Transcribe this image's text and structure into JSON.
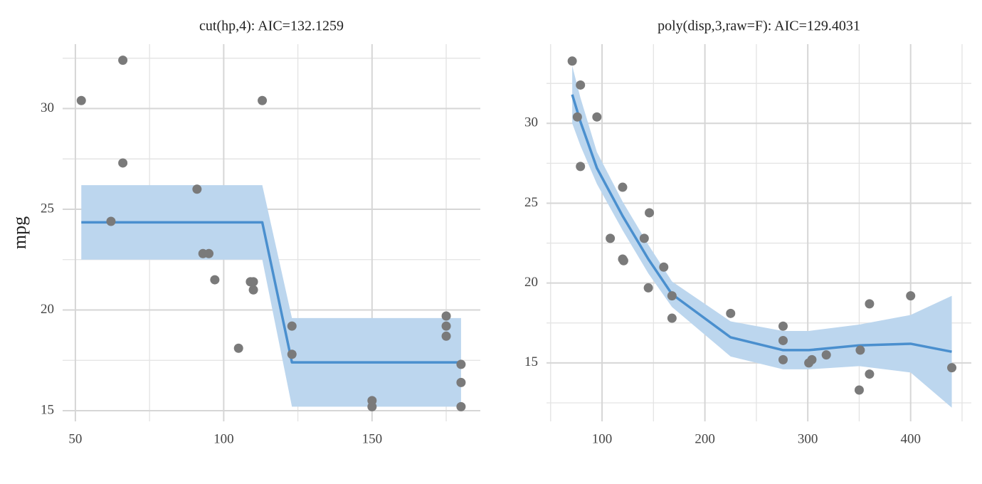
{
  "chart_data": [
    {
      "type": "scatter",
      "title": "cut(hp,4): AIC=132.1259",
      "ylabel": "mpg",
      "point_color": "#7a7a7a",
      "line_color": "#4a8fce",
      "band_color": "#bcd6ee",
      "x": [
        52,
        62,
        66,
        66,
        91,
        93,
        95,
        97,
        105,
        109,
        110,
        110,
        113,
        123,
        123,
        150,
        150,
        175,
        175,
        175,
        180,
        180,
        180
      ],
      "y": [
        30.4,
        24.4,
        32.4,
        27.3,
        26,
        22.8,
        22.8,
        21.5,
        18.1,
        21.4,
        21.4,
        21.0,
        30.4,
        19.2,
        17.8,
        15.5,
        15.2,
        19.7,
        19.2,
        18.7,
        17.3,
        16.4,
        15.2
      ],
      "fit": {
        "x": [
          52,
          113,
          123,
          180
        ],
        "y": [
          24.35,
          24.35,
          17.4,
          17.4
        ],
        "lower": [
          22.5,
          22.5,
          15.2,
          15.2
        ],
        "upper": [
          26.2,
          26.2,
          19.6,
          19.6
        ]
      },
      "xlim": [
        45.7,
        186.5
      ],
      "ylim": [
        14.47,
        33.2
      ],
      "xticks": [
        50,
        100,
        150
      ],
      "yticks": [
        15,
        20,
        25,
        30
      ],
      "xminor": [
        75,
        125,
        175
      ],
      "yminor": [
        17.5,
        22.5,
        27.5,
        32.5
      ],
      "grid": true
    },
    {
      "type": "scatter",
      "title": "poly(disp,3,raw=F): AIC=129.4031",
      "point_color": "#7a7a7a",
      "line_color": "#4a8fce",
      "band_color": "#bcd6ee",
      "x": [
        71,
        76,
        79,
        79,
        95,
        108,
        120,
        121,
        120,
        141,
        146,
        145,
        160,
        168,
        168,
        225,
        276,
        276,
        276,
        301,
        304,
        318,
        350,
        351,
        360,
        360,
        400,
        440
      ],
      "y": [
        33.9,
        30.4,
        32.4,
        27.3,
        30.4,
        22.8,
        21.5,
        21.4,
        26,
        22.8,
        24.4,
        19.7,
        21,
        19.2,
        17.8,
        18.1,
        17.3,
        16.4,
        15.2,
        15,
        15.2,
        15.5,
        13.3,
        15.8,
        18.7,
        14.3,
        19.2,
        14.7
      ],
      "fit": {
        "x": [
          71,
          79,
          95,
          120,
          145,
          168,
          225,
          276,
          301,
          350,
          400,
          440
        ],
        "y": [
          31.8,
          30.1,
          27.2,
          24.2,
          21.5,
          19.3,
          16.6,
          15.8,
          15.8,
          16.1,
          16.2,
          15.7
        ],
        "lower": [
          30.0,
          28.6,
          26.2,
          23.3,
          20.6,
          18.5,
          15.4,
          14.6,
          14.6,
          14.8,
          14.4,
          12.2
        ],
        "upper": [
          33.6,
          31.6,
          28.2,
          25.1,
          22.4,
          20.1,
          17.6,
          17.0,
          17.0,
          17.4,
          18.0,
          19.2
        ]
      },
      "xlim": [
        46,
        459
      ],
      "ylim": [
        11.34,
        34.96
      ],
      "xticks": [
        100,
        200,
        300,
        400
      ],
      "yticks": [
        15,
        20,
        25,
        30
      ],
      "xminor": [
        50,
        150,
        250,
        350,
        450
      ],
      "yminor": [
        12.5,
        17.5,
        22.5,
        27.5,
        32.5
      ],
      "grid": true
    }
  ]
}
